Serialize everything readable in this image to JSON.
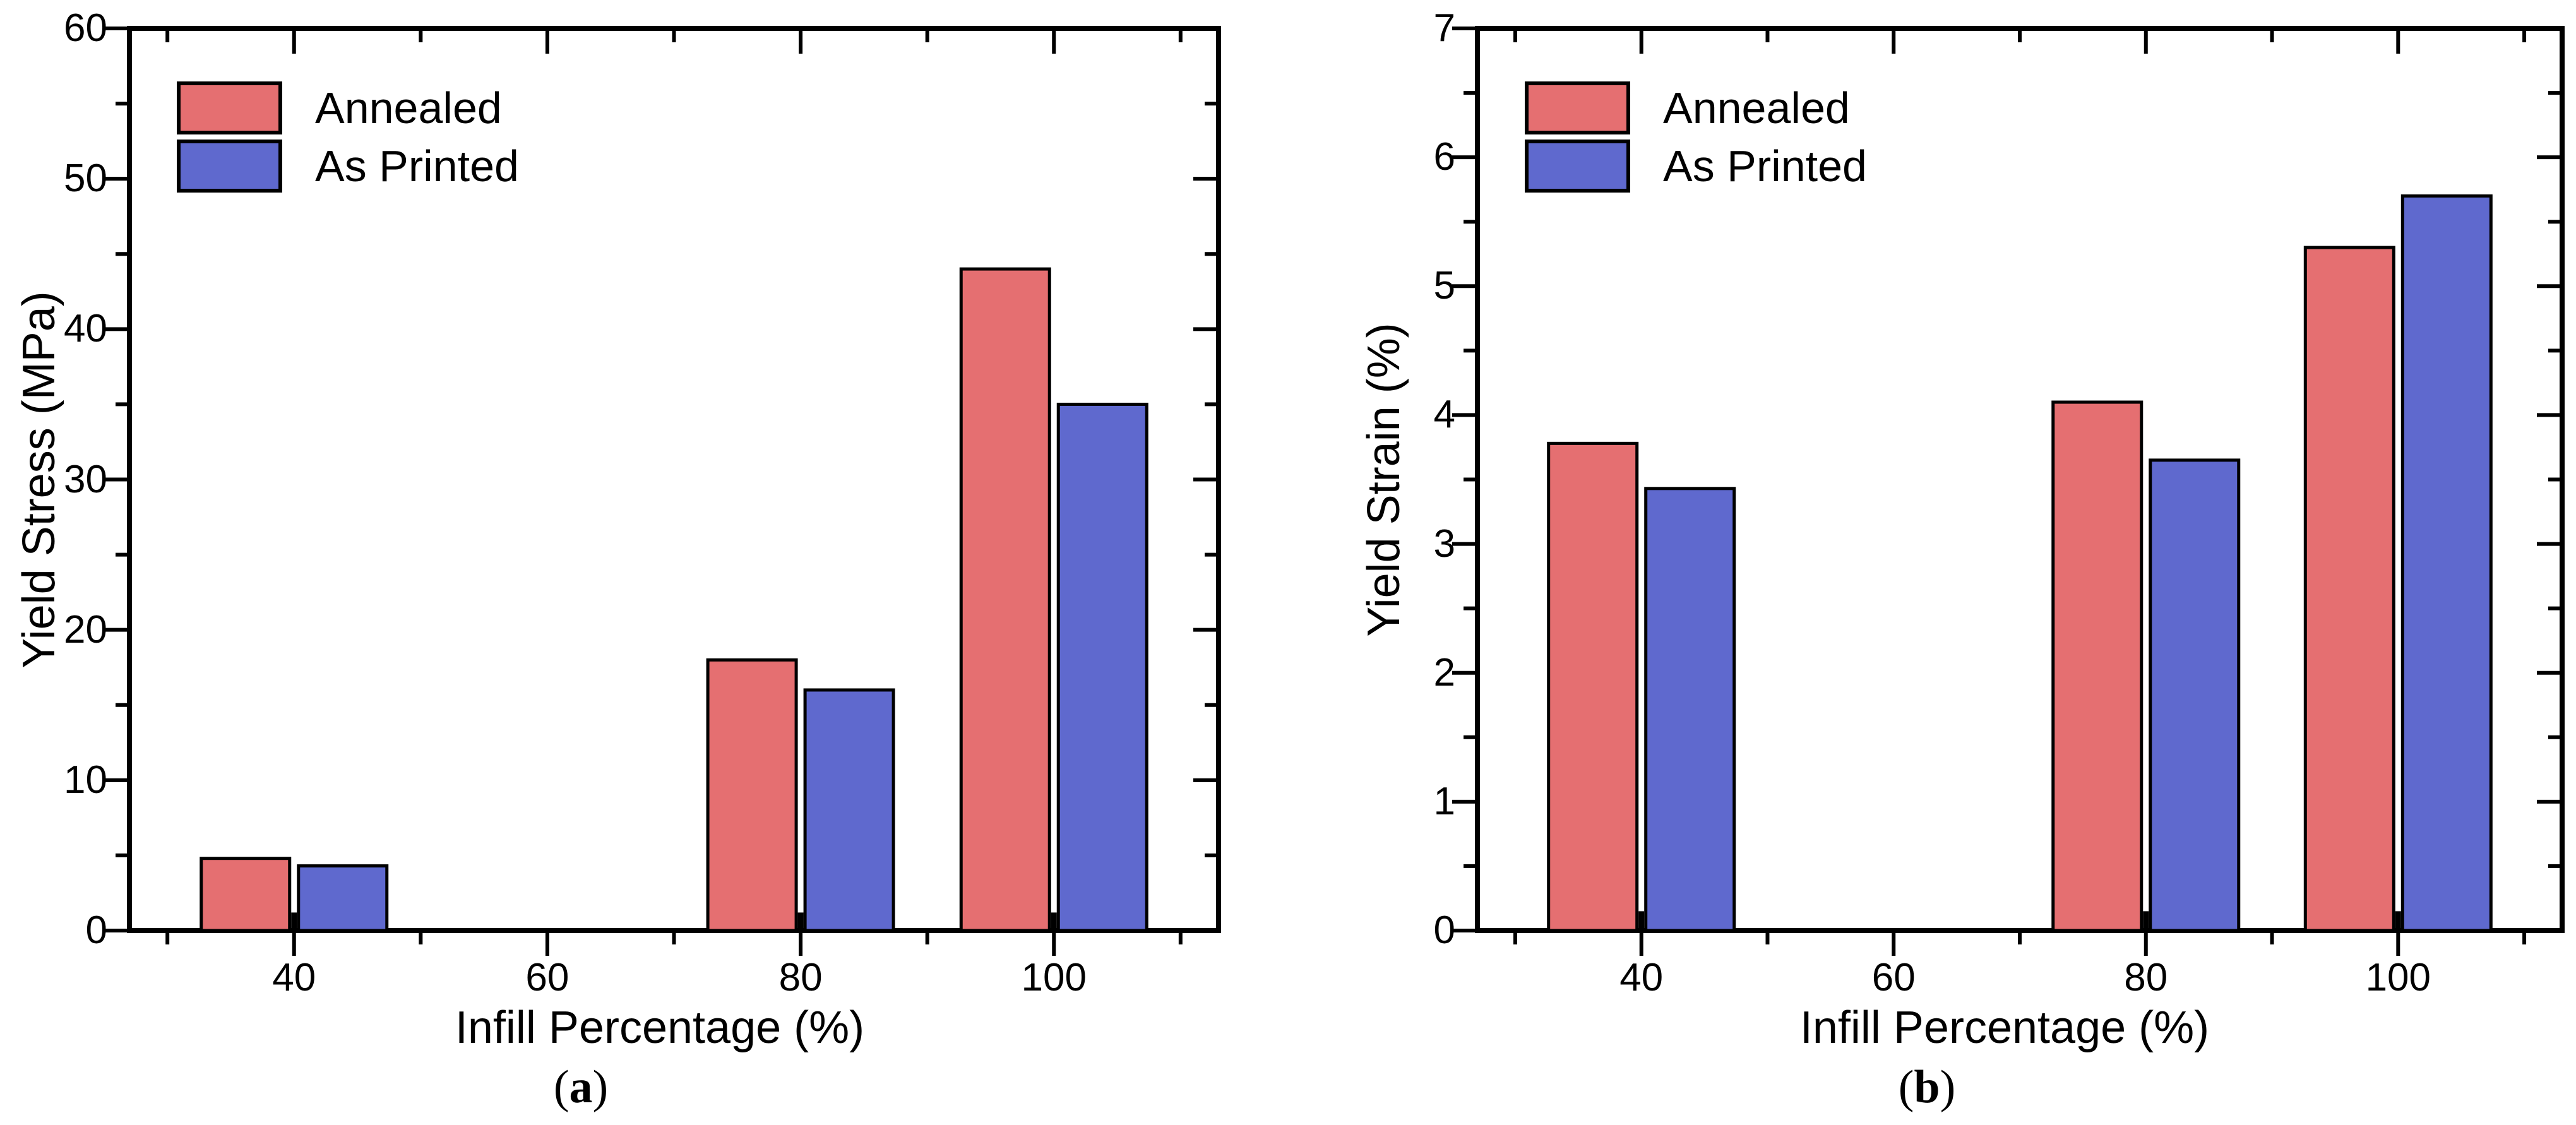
{
  "figure_type": "two-panel bar chart figure",
  "background_color": "#ffffff",
  "axis_color": "#000000",
  "bar_edge_color": "#000000",
  "legend": {
    "entries": [
      {
        "label": "Annealed",
        "color": "#E56F71"
      },
      {
        "label": "As Printed",
        "color": "#5F69CE"
      }
    ]
  },
  "chart_data": [
    {
      "type": "bar",
      "title": "",
      "caption_open": "(",
      "caption_letter": "a",
      "caption_close": ")",
      "xlabel": "Infill Percentage (%)",
      "ylabel": "Yield Stress (MPa)",
      "categories": [
        40,
        60,
        80,
        100
      ],
      "x_tick_labels": [
        "40",
        "60",
        "80",
        "100"
      ],
      "series": [
        {
          "name": "Annealed",
          "color": "#E56F71",
          "values": [
            4.8,
            null,
            18,
            44
          ]
        },
        {
          "name": "As Printed",
          "color": "#5F69CE",
          "values": [
            4.3,
            null,
            16,
            35
          ]
        }
      ],
      "ylim": [
        0,
        60
      ],
      "y_major_step": 10,
      "y_minor_step": 5,
      "y_tick_labels": [
        "0",
        "10",
        "20",
        "30",
        "40",
        "50",
        "60"
      ],
      "xlim": [
        27,
        113
      ],
      "x_minor_ticks": [
        30,
        50,
        70,
        90,
        110
      ],
      "center_stub_value": 1.2,
      "grid": false,
      "legend_position": "top-left"
    },
    {
      "type": "bar",
      "title": "",
      "caption_open": "(",
      "caption_letter": "b",
      "caption_close": ")",
      "xlabel": "Infill Percentage (%)",
      "ylabel": "Yield Strain (%)",
      "categories": [
        40,
        60,
        80,
        100
      ],
      "x_tick_labels": [
        "40",
        "60",
        "80",
        "100"
      ],
      "series": [
        {
          "name": "Annealed",
          "color": "#E56F71",
          "values": [
            3.78,
            null,
            4.1,
            5.3
          ]
        },
        {
          "name": "As Printed",
          "color": "#5F69CE",
          "values": [
            3.43,
            null,
            3.65,
            5.7
          ]
        }
      ],
      "ylim": [
        0,
        7
      ],
      "y_major_step": 1,
      "y_minor_step": 0.5,
      "y_tick_labels": [
        "0",
        "1",
        "2",
        "3",
        "4",
        "5",
        "6",
        "7"
      ],
      "xlim": [
        27,
        113
      ],
      "x_minor_ticks": [
        30,
        50,
        70,
        90,
        110
      ],
      "center_stub_value": 0.15,
      "grid": false,
      "legend_position": "top-left"
    }
  ]
}
